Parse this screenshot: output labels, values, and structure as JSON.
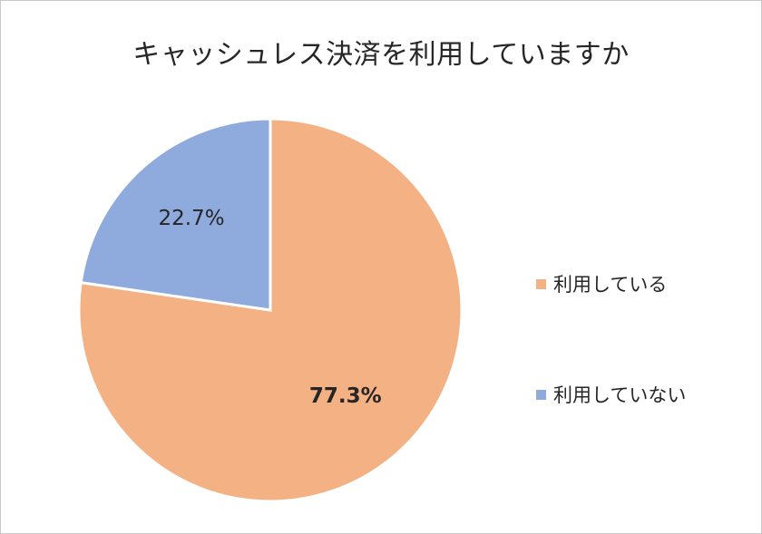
{
  "chart_data": {
    "type": "pie",
    "title": "キャッシュレス決済を利用していますか",
    "slices": [
      {
        "label": "利用している",
        "value": 77.3,
        "display": "77.3%",
        "color": "#f4b183"
      },
      {
        "label": "利用していない",
        "value": 22.7,
        "display": "22.7%",
        "color": "#8faadc"
      }
    ],
    "start_angle_deg": 0,
    "direction": "clockwise",
    "legend_position": "right"
  }
}
